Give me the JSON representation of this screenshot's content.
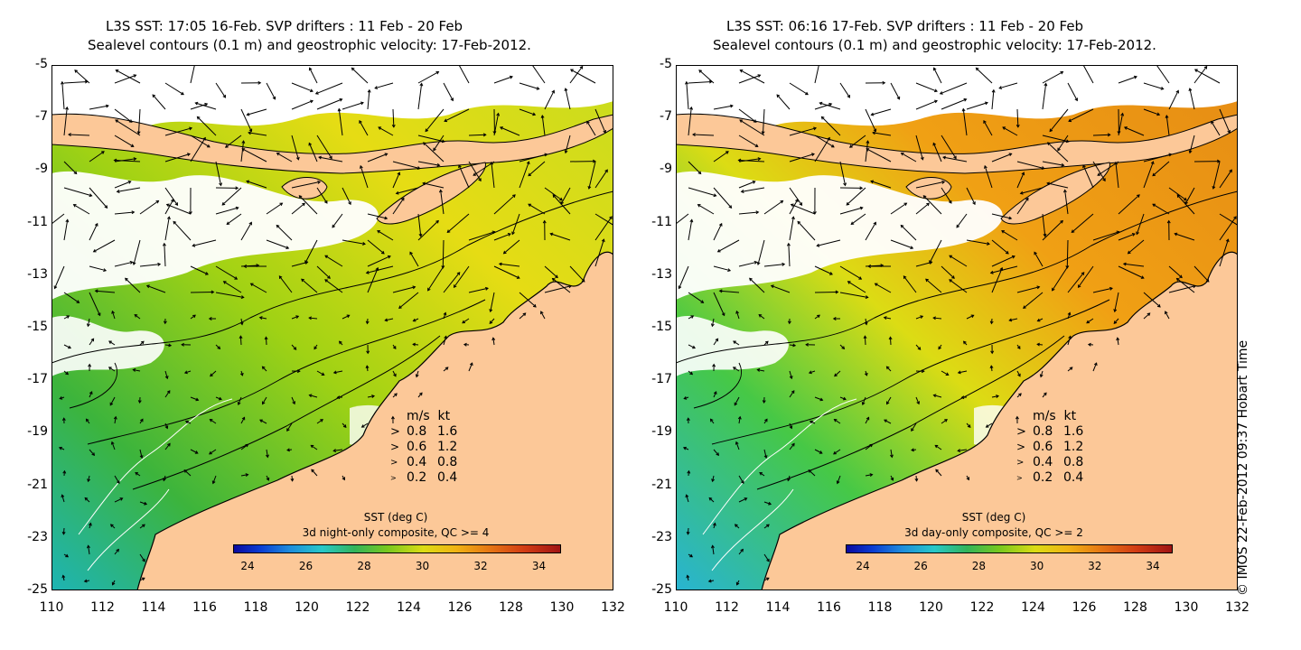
{
  "left": {
    "title_line1": "L3S SST: 17:05 16-Feb. SVP drifters : 11 Feb - 20 Feb",
    "title_line2": "Sealevel contours (0.1 m) and geostrophic velocity: 17-Feb-2012.",
    "legend_header": "m/s  kt",
    "legend_rows": [
      [
        "0.8",
        "1.6"
      ],
      [
        "0.6",
        "1.2"
      ],
      [
        "0.4",
        "0.8"
      ],
      [
        "0.2",
        "0.4"
      ]
    ],
    "colorbar_title": "SST (deg C)",
    "colorbar_subtitle": "3d night-only composite, QC >= 4",
    "colorbar_ticks": [
      "24",
      "26",
      "28",
      "30",
      "32",
      "34"
    ]
  },
  "right": {
    "title_line1": "L3S SST: 06:16 17-Feb. SVP drifters : 11 Feb - 20 Feb",
    "title_line2": "Sealevel contours (0.1 m) and geostrophic velocity: 17-Feb-2012.",
    "legend_header": "m/s  kt",
    "legend_rows": [
      [
        "0.8",
        "1.6"
      ],
      [
        "0.6",
        "1.2"
      ],
      [
        "0.4",
        "0.8"
      ],
      [
        "0.2",
        "0.4"
      ]
    ],
    "colorbar_title": "SST (deg C)",
    "colorbar_subtitle": "3d day-only composite, QC >= 2",
    "colorbar_ticks": [
      "24",
      "26",
      "28",
      "30",
      "32",
      "34"
    ]
  },
  "axes": {
    "x_ticks": [
      "110",
      "112",
      "114",
      "116",
      "118",
      "120",
      "122",
      "124",
      "126",
      "128",
      "130",
      "132"
    ],
    "y_ticks": [
      "-5",
      "-7",
      "-9",
      "-11",
      "-13",
      "-15",
      "-17",
      "-19",
      "-21",
      "-23",
      "-25"
    ]
  },
  "copyright": "© IMOS 22-Feb-2012 09:37 Hobart Time",
  "colors": {
    "land": "#fcc898",
    "cloud": "#ffffff"
  }
}
